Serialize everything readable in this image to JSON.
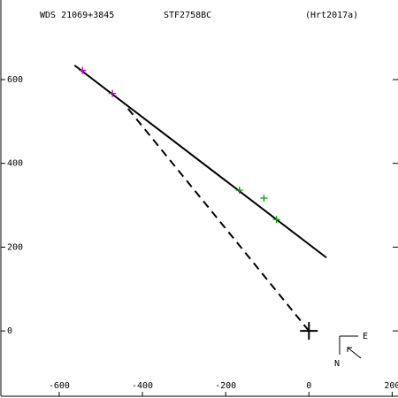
{
  "chart_data": {
    "type": "scatter",
    "title": "WDS 21069+3845",
    "subtitle": "STF2758BC",
    "reference": "(Hrt2017a)",
    "xlim": [
      -740,
      214
    ],
    "ylim": [
      -156,
      790
    ],
    "xticks": [
      -600,
      -400,
      -200,
      0,
      200
    ],
    "yticks": [
      0,
      200,
      400,
      600
    ],
    "orbit_line": {
      "x": [
        -563,
        42
      ],
      "y": [
        634,
        175
      ],
      "color": "#000000"
    },
    "node_line": {
      "x": [
        0,
        -443
      ],
      "y": [
        0,
        541
      ],
      "color": "#000000"
    },
    "primary": {
      "x": 0,
      "y": 0
    },
    "series": [
      {
        "color": "#c000c0",
        "x": [
          -544,
          -472
        ],
        "y": [
          622,
          567
        ]
      },
      {
        "color": "#00a000",
        "x": [
          -167,
          -108,
          -78
        ],
        "y": [
          336,
          317,
          266
        ]
      }
    ],
    "compass": {
      "east": "E",
      "north": "N"
    }
  }
}
